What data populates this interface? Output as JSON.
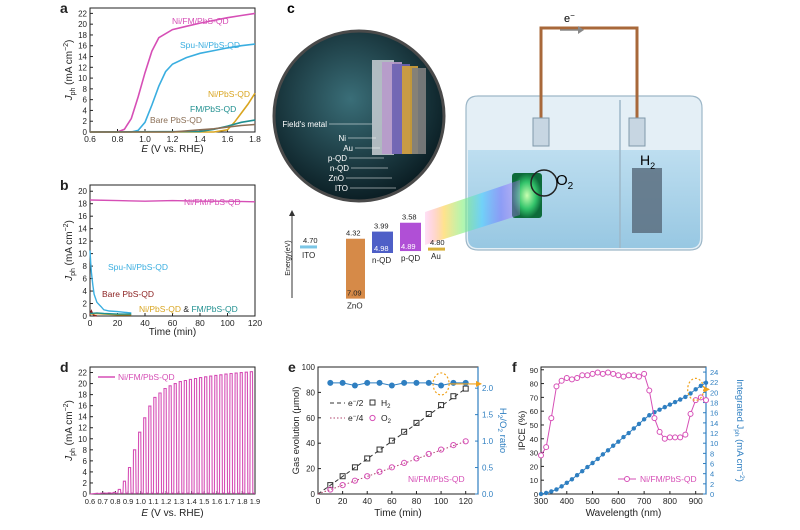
{
  "colors": {
    "magenta": "#d64fb6",
    "sky": "#3aaee0",
    "gold": "#d9a520",
    "teal": "#1f8f8f",
    "brown": "#8a6e55",
    "darkred": "#8a1f1f",
    "blue": "#2f7fc1",
    "orange": "#f0a21b",
    "axis": "#222222",
    "axis_blue": "#2f7fc1"
  },
  "panels": {
    "a": {
      "letter": "a",
      "ylabel": "J",
      "ylabel_sub": "ph",
      "ylabel_unit": "(mA cm",
      "ylabel_sup": "−2",
      "ylabel_end": ")",
      "xlabel": "E (V vs. RHE)",
      "xlabel_italic": "E",
      "xlabel_rest": " (V vs. RHE)",
      "xticks": [
        "0.6",
        "0.8",
        "1.0",
        "1.2",
        "1.4",
        "1.6",
        "1.8"
      ],
      "yticks": [
        "0",
        "2",
        "4",
        "6",
        "8",
        "10",
        "12",
        "14",
        "16",
        "18",
        "20",
        "22"
      ]
    },
    "b": {
      "letter": "b",
      "ylabel": "J",
      "ylabel_sub": "ph",
      "ylabel_unit": "(mA cm",
      "ylabel_sup": "−2",
      "ylabel_end": ")",
      "xlabel": "Time (min)",
      "xticks": [
        "0",
        "20",
        "40",
        "60",
        "80",
        "100",
        "120"
      ],
      "yticks": [
        "0",
        "2",
        "4",
        "6",
        "8",
        "10",
        "12",
        "14",
        "16",
        "18",
        "20"
      ],
      "legend_amp": "&"
    },
    "c": {
      "letter": "c",
      "electron": "e",
      "electron_sup": "−",
      "o2": "O",
      "o2_sub": "2",
      "h2": "H",
      "h2_sub": "2",
      "energy_axis": "Energy(eV)",
      "layers": [
        "Field's metal",
        "Ni",
        "Au",
        "p-QD",
        "n-QD",
        "ZnO",
        "ITO"
      ],
      "bands": [
        {
          "label": "ITO",
          "top": "4.70"
        },
        {
          "label": "ZnO",
          "top": "4.32",
          "bottom": "7.09"
        },
        {
          "label": "n-QD",
          "top": "3.99",
          "bottom": "4.98"
        },
        {
          "label": "p-QD",
          "top": "3.58",
          "bottom": "4.89"
        },
        {
          "label": "Au",
          "top": "4.80"
        }
      ]
    },
    "d": {
      "letter": "d",
      "ylabel": "J",
      "ylabel_sub": "ph",
      "ylabel_unit": "(mA cm",
      "ylabel_sup": "−2",
      "ylabel_end": ")",
      "xlabel_italic": "E",
      "xlabel_rest": " (V vs. RHE)",
      "xticks": [
        "0.6",
        "0.7",
        "0.8",
        "0.9",
        "1.0",
        "1.1",
        "1.2",
        "1.3",
        "1.4",
        "1.5",
        "1.6",
        "1.7",
        "1.8",
        "1.9"
      ],
      "yticks": [
        "0",
        "2",
        "4",
        "6",
        "8",
        "10",
        "12",
        "14",
        "16",
        "18",
        "20",
        "22"
      ],
      "legend": "Ni/FM/PbS-QD"
    },
    "e": {
      "letter": "e",
      "ylabel": "Gas evolution (μmol)",
      "ylabel2": "H",
      "ylabel2_mid": "/O",
      "ylabel2_end": " ratio",
      "xlabel": "Time (min)",
      "xticks": [
        "0",
        "20",
        "40",
        "60",
        "80",
        "100",
        "120"
      ],
      "yticks": [
        "0",
        "20",
        "40",
        "60",
        "80",
        "100"
      ],
      "y2ticks": [
        "0.0",
        "0.5",
        "1.0",
        "1.5",
        "2.0"
      ],
      "legend_e2": "e",
      "legend_e2_rest": "/2",
      "legend_e4": "e",
      "legend_e4_rest": "/4",
      "legend_h2": "H",
      "legend_o2": "O",
      "sub2": "2",
      "sup_minus": "−",
      "sample": "Ni/FM/PbS-QD"
    },
    "f": {
      "letter": "f",
      "ylabel": "IPCE (%)",
      "ylabel2": "Integrated J",
      "ylabel2_sub": "ph",
      "ylabel2_end": " (mA cm",
      "ylabel2_sup": "−2",
      "ylabel2_close": ")",
      "xlabel": "Wavelength (nm)",
      "xticks": [
        "300",
        "400",
        "500",
        "600",
        "700",
        "800",
        "900"
      ],
      "yticks": [
        "0",
        "10",
        "20",
        "30",
        "40",
        "50",
        "60",
        "70",
        "80",
        "90"
      ],
      "y2ticks": [
        "0",
        "2",
        "4",
        "6",
        "8",
        "10",
        "12",
        "14",
        "16",
        "18",
        "20",
        "22",
        "24"
      ],
      "legend": "Ni/FM/PbS-QD"
    }
  },
  "chart_data": [
    {
      "panel": "a",
      "type": "line",
      "xlabel": "E (V vs. RHE)",
      "ylabel": "Jph (mA cm−2)",
      "xlim": [
        0.6,
        1.8
      ],
      "ylim": [
        0,
        23
      ],
      "series": [
        {
          "name": "Ni/FM/PbS-QD",
          "color": "#d64fb6",
          "x": [
            0.6,
            0.8,
            0.85,
            0.9,
            0.95,
            1.0,
            1.05,
            1.1,
            1.2,
            1.3,
            1.4,
            1.5,
            1.6,
            1.7,
            1.8
          ],
          "y": [
            0,
            0,
            0.5,
            2.5,
            6.5,
            11,
            15,
            17.5,
            19,
            19.6,
            20.2,
            20.7,
            21.2,
            21.6,
            22
          ]
        },
        {
          "name": "Spu-Ni/PbS-QD",
          "color": "#3aaee0",
          "x": [
            0.6,
            0.9,
            0.95,
            1.0,
            1.05,
            1.1,
            1.15,
            1.2,
            1.3,
            1.4,
            1.5,
            1.6,
            1.7,
            1.8
          ],
          "y": [
            0,
            0,
            0.3,
            1.8,
            5,
            8.5,
            11.2,
            12.6,
            13.8,
            14.6,
            15.1,
            15.6,
            16,
            16.3
          ]
        },
        {
          "name": "Ni/PbS-QD",
          "color": "#d9a520",
          "x": [
            0.6,
            1.5,
            1.6,
            1.65,
            1.7,
            1.75,
            1.8
          ],
          "y": [
            0,
            0,
            0.4,
            1.8,
            3.5,
            5.2,
            7.2
          ]
        },
        {
          "name": "FM/PbS-QD",
          "color": "#1f8f8f",
          "x": [
            0.6,
            1.4,
            1.5,
            1.6,
            1.7,
            1.8
          ],
          "y": [
            0,
            0.1,
            0.5,
            1.1,
            1.8,
            2.2
          ]
        },
        {
          "name": "Bare PbS-QD",
          "color": "#8a6e55",
          "x": [
            0.6,
            1.2,
            1.3,
            1.4,
            1.5,
            1.6,
            1.7,
            1.8
          ],
          "y": [
            0,
            0,
            0.2,
            0.4,
            0.6,
            0.9,
            1.2,
            1.4
          ]
        }
      ]
    },
    {
      "panel": "b",
      "type": "line",
      "xlabel": "Time (min)",
      "ylabel": "Jph (mA cm−2)",
      "xlim": [
        0,
        120
      ],
      "ylim": [
        0,
        21
      ],
      "series": [
        {
          "name": "Ni/FM/PbS-QD",
          "color": "#d64fb6",
          "x": [
            0,
            20,
            40,
            60,
            80,
            100,
            120
          ],
          "y": [
            18.6,
            18.5,
            18.4,
            18.5,
            18.4,
            18.4,
            18.3
          ]
        },
        {
          "name": "Spu-Ni/PbS-QD",
          "color": "#3aaee0",
          "x": [
            0,
            0.5,
            1,
            2,
            3,
            5,
            8,
            10,
            14,
            20,
            25,
            30
          ],
          "y": [
            10.5,
            8.5,
            7,
            5,
            3.5,
            2.2,
            1.5,
            1,
            0.8,
            0.7,
            0.6,
            0.5
          ]
        },
        {
          "name": "Bare PbS-QD",
          "color": "#8a1f1f",
          "x": [
            0,
            1,
            2,
            3,
            4,
            5
          ],
          "y": [
            0.2,
            0.8,
            0.3,
            0.1,
            0.05,
            0.02
          ]
        },
        {
          "name": "Ni/PbS-QD",
          "color": "#d9a520",
          "x": [
            0,
            5,
            10,
            20,
            30
          ],
          "y": [
            0.3,
            0.4,
            0.3,
            0.2,
            0.2
          ]
        },
        {
          "name": "FM/PbS-QD",
          "color": "#1f8f8f",
          "x": [
            0,
            5,
            10,
            20,
            30
          ],
          "y": [
            0.4,
            0.5,
            0.4,
            0.3,
            0.3
          ]
        }
      ]
    },
    {
      "panel": "d",
      "type": "line",
      "xlabel": "E (V vs. RHE)",
      "ylabel": "Jph (mA cm−2)",
      "xlim": [
        0.6,
        1.9
      ],
      "ylim": [
        0,
        23
      ],
      "chopped": true,
      "chop_period_V": 0.04,
      "chop_start_V": 0.66,
      "series": [
        {
          "name": "Ni/FM/PbS-QD",
          "color": "#d64fb6",
          "envelope_x": [
            0.6,
            0.8,
            0.85,
            0.9,
            0.95,
            1.0,
            1.05,
            1.1,
            1.2,
            1.3,
            1.4,
            1.5,
            1.6,
            1.7,
            1.8,
            1.9
          ],
          "envelope_y": [
            0,
            0.3,
            1.2,
            4,
            8,
            12,
            15,
            17.3,
            19.3,
            20.3,
            20.8,
            21.2,
            21.5,
            21.8,
            22,
            22.2
          ]
        }
      ]
    },
    {
      "panel": "e",
      "type": "scatter",
      "xlabel": "Time (min)",
      "ylabel": "Gas evolution (μmol)",
      "ylabel2": "H2/O2 ratio",
      "xlim": [
        0,
        130
      ],
      "ylim": [
        0,
        100
      ],
      "y2lim": [
        0,
        2.4
      ],
      "series": [
        {
          "name": "e−/2",
          "style": "dashed",
          "color": "#333333",
          "x": [
            0,
            120
          ],
          "y": [
            0,
            83
          ]
        },
        {
          "name": "e−/4",
          "style": "dotted",
          "color": "#b0456e",
          "x": [
            0,
            120
          ],
          "y": [
            0,
            41.5
          ]
        },
        {
          "name": "H2",
          "marker": "square",
          "color": "#333333",
          "x": [
            10,
            20,
            30,
            40,
            50,
            60,
            70,
            80,
            90,
            100,
            110,
            120
          ],
          "y": [
            7,
            14,
            21,
            28,
            35,
            42,
            49,
            56,
            63,
            70,
            77,
            83
          ]
        },
        {
          "name": "O2",
          "marker": "circle",
          "color": "#d64fb6",
          "x": [
            10,
            20,
            30,
            40,
            50,
            60,
            70,
            80,
            90,
            100,
            110,
            120
          ],
          "y": [
            3.5,
            7,
            10.5,
            14,
            17.5,
            21,
            24.5,
            28,
            31.5,
            35,
            38.5,
            41.5
          ]
        },
        {
          "name": "ratio",
          "axis": "right",
          "color": "#2f7fc1",
          "x": [
            10,
            20,
            30,
            40,
            50,
            60,
            70,
            80,
            90,
            100,
            110,
            120
          ],
          "y": [
            2.1,
            2.1,
            2.05,
            2.1,
            2.1,
            2.05,
            2.1,
            2.1,
            2.1,
            2.05,
            2.1,
            2.1
          ]
        }
      ]
    },
    {
      "panel": "f",
      "type": "line",
      "xlabel": "Wavelength (nm)",
      "ylabel": "IPCE (%)",
      "ylabel2": "Integrated Jph (mA cm−2)",
      "xlim": [
        300,
        940
      ],
      "ylim": [
        0,
        92
      ],
      "y2lim": [
        0,
        25
      ],
      "series": [
        {
          "name": "Ni/FM/PbS-QD",
          "color": "#d64fb6",
          "marker": "circle-open",
          "x": [
            300,
            320,
            340,
            360,
            380,
            400,
            420,
            440,
            460,
            480,
            500,
            520,
            540,
            560,
            580,
            600,
            620,
            640,
            660,
            680,
            700,
            720,
            740,
            760,
            780,
            800,
            820,
            840,
            860,
            880,
            900,
            920,
            940
          ],
          "y": [
            28,
            34,
            55,
            78,
            82,
            84,
            83,
            84,
            86,
            86,
            87,
            88,
            87,
            88,
            87,
            86,
            85,
            86,
            86,
            85,
            87,
            75,
            55,
            45,
            40,
            41,
            41,
            41,
            43,
            58,
            68,
            70,
            68
          ]
        },
        {
          "name": "Integrated Jph",
          "axis": "right",
          "color": "#2f7fc1",
          "marker": "circle",
          "x": [
            300,
            320,
            340,
            360,
            380,
            400,
            420,
            440,
            460,
            480,
            500,
            520,
            540,
            560,
            580,
            600,
            620,
            640,
            660,
            680,
            700,
            720,
            740,
            760,
            780,
            800,
            820,
            840,
            860,
            880,
            900,
            920,
            940
          ],
          "y": [
            0,
            0.2,
            0.5,
            0.9,
            1.5,
            2.2,
            2.9,
            3.7,
            4.5,
            5.3,
            6.1,
            6.9,
            7.8,
            8.6,
            9.5,
            10.3,
            11.2,
            12.0,
            12.9,
            13.8,
            14.7,
            15.5,
            16.1,
            16.6,
            17.1,
            17.6,
            18.1,
            18.6,
            19.1,
            19.8,
            20.6,
            21.3,
            21.9
          ]
        }
      ]
    }
  ]
}
